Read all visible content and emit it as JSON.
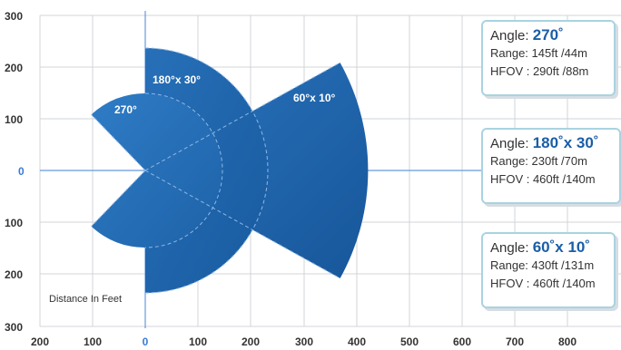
{
  "diagram": {
    "y_ticks": [
      "300",
      "200",
      "100",
      "0",
      "100",
      "200",
      "300"
    ],
    "x_ticks": [
      "200",
      "100",
      "0",
      "100",
      "200",
      "300",
      "400",
      "500",
      "600",
      "700",
      "800"
    ],
    "distance_label": "Distance In Feet",
    "sectors": [
      {
        "label": "270°"
      },
      {
        "label": "180°x 30°"
      },
      {
        "label": "60°x 10°"
      }
    ],
    "colors": {
      "sector_fill": "#1a5ea6",
      "sector_fill_dark": "#134c8c",
      "grid": "#d0d4da",
      "axis": "#6699dd",
      "box_border": "#a9d3e0"
    }
  },
  "info_boxes": [
    {
      "angle_label": "Angle: ",
      "angle_value": "270˚",
      "range": "Range: 145ft /44m",
      "hfov": "HFOV : 290ft /88m"
    },
    {
      "angle_label": "Angle: ",
      "angle_value": "180˚x 30˚",
      "range": "Range: 230ft /70m",
      "hfov": "HFOV : 460ft /140m"
    },
    {
      "angle_label": "Angle: ",
      "angle_value": "60˚x 10˚",
      "range": "Range: 430ft /131m",
      "hfov": "HFOV : 460ft /140m"
    }
  ]
}
